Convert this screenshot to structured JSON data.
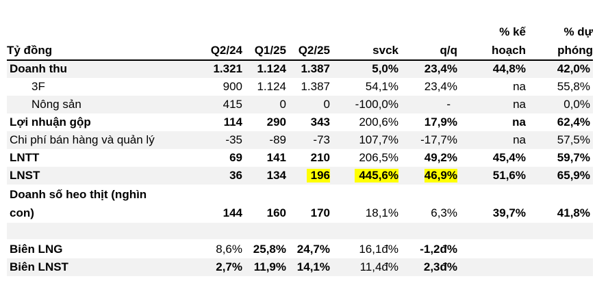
{
  "header": {
    "label": "Tỷ đồng",
    "cols": [
      "Q2/24",
      "Q1/25",
      "Q2/25",
      "svck",
      "q/q"
    ],
    "plan_line1": "% kế",
    "plan_line2": "hoạch",
    "fc_line1": "% dự",
    "fc_line2": "phóng"
  },
  "rows": [
    {
      "label": "Doanh thu",
      "vals": [
        "1.321",
        "1.124",
        "1.387",
        "5,0%",
        "23,4%",
        "44,8%",
        "42,0%"
      ]
    },
    {
      "label": "3F",
      "vals": [
        "900",
        "1.124",
        "1.387",
        "54,1%",
        "23,4%",
        "na",
        "55,8%"
      ]
    },
    {
      "label": "Nông sản",
      "vals": [
        "415",
        "0",
        "0",
        "-100,0%",
        "-",
        "na",
        "0,0%"
      ]
    },
    {
      "label": "Lợi nhuận gộp",
      "vals": [
        "114",
        "290",
        "343",
        "200,6%",
        "17,9%",
        "na",
        "62,4%"
      ]
    },
    {
      "label": "Chi phí bán hàng và quản lý",
      "vals": [
        "-35",
        "-89",
        "-73",
        "107,7%",
        "-17,7%",
        "na",
        "57,5%"
      ]
    },
    {
      "label": "LNTT",
      "vals": [
        "69",
        "141",
        "210",
        "206,5%",
        "49,2%",
        "45,4%",
        "59,7%"
      ]
    },
    {
      "label": "LNST",
      "vals": [
        "36",
        "134",
        "196",
        "445,6%",
        "46,9%",
        "51,6%",
        "65,9%"
      ]
    },
    {
      "label_line1": "Doanh số heo thịt (nghìn",
      "label_line2": "con)",
      "vals": [
        "144",
        "160",
        "170",
        "18,1%",
        "6,3%",
        "39,7%",
        "41,8%"
      ]
    },
    {
      "label": "Biên LNG",
      "vals": [
        "8,6%",
        "25,8%",
        "24,7%",
        "16,1đ%",
        "-1,2đ%"
      ]
    },
    {
      "label": "Biên LNST",
      "vals": [
        "2,7%",
        "11,9%",
        "14,1%",
        "11,4đ%",
        "2,3đ%"
      ]
    }
  ],
  "colors": {
    "highlight": "#ffff00",
    "shade": "#f2f2f2",
    "rule": "#000000"
  }
}
